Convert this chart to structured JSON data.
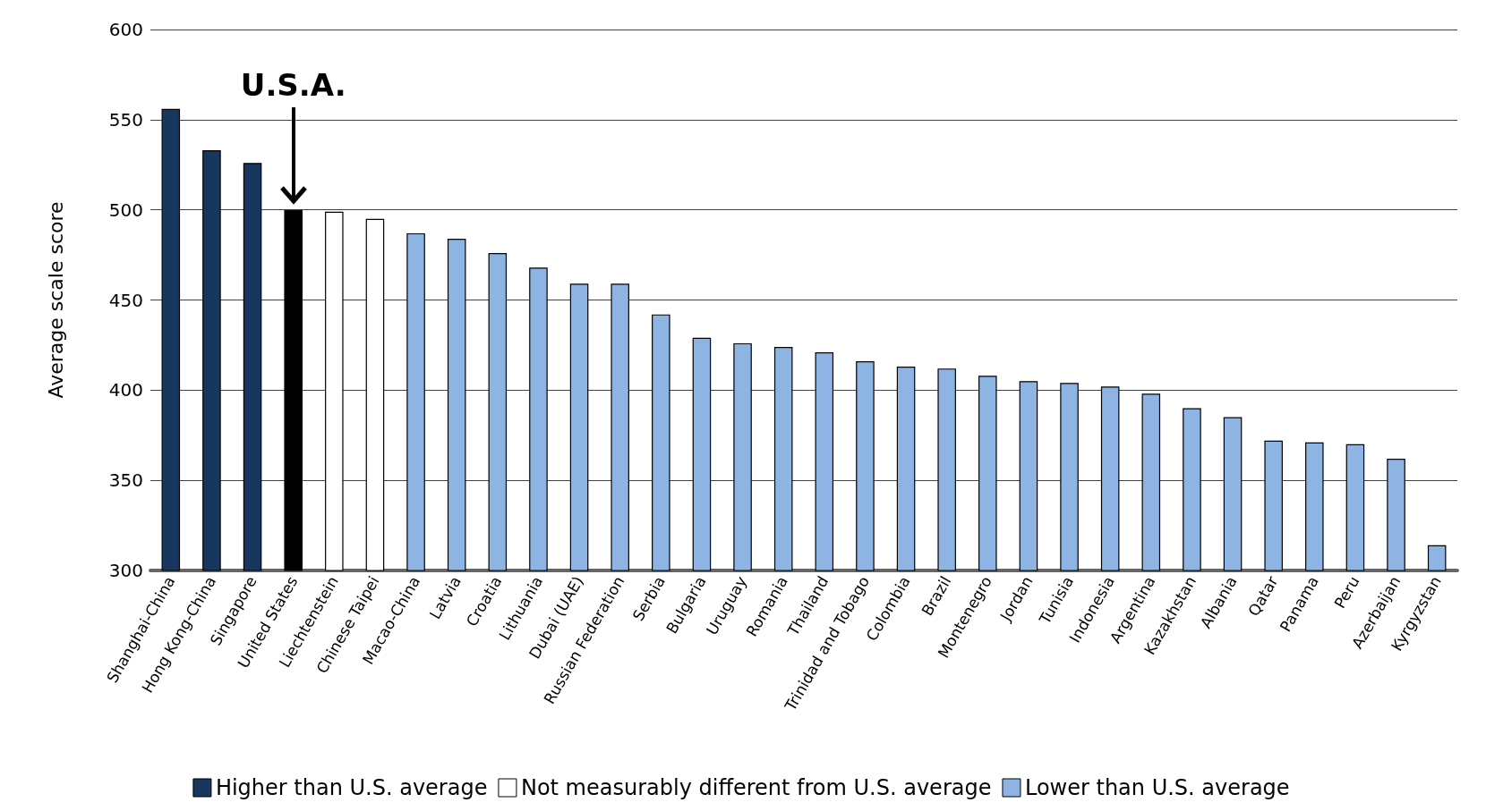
{
  "chart_data": {
    "type": "bar",
    "ylabel": "Average scale score",
    "stacked": true,
    "categories": [
      "Shanghai-China",
      "Hong Kong-China",
      "Singapore",
      "United States",
      "Liechtenstein",
      "Chinese Taipei",
      "Macao-China",
      "Latvia",
      "Croatia",
      "Lithuania",
      "Dubai (UAE)",
      "Russian Federation",
      "Serbia",
      "Bulgaria",
      "Uruguay",
      "Romania",
      "Thailand",
      "Trinidad and Tobago",
      "Colombia",
      "Brazil",
      "Montenegro",
      "Jordan",
      "Tunisia",
      "Indonesia",
      "Argentina",
      "Kazakhstan",
      "Albania",
      "Qatar",
      "Panama",
      "Peru",
      "Azerbaijan",
      "Kyrgyzstan"
    ],
    "series": [
      {
        "name": "Higher than U.S. average",
        "color": "#17375e",
        "values": [
          556,
          533,
          526,
          null,
          null,
          null,
          null,
          null,
          null,
          null,
          null,
          null,
          null,
          null,
          null,
          null,
          null,
          null,
          null,
          null,
          null,
          null,
          null,
          null,
          null,
          null,
          null,
          null,
          null,
          null,
          null,
          null
        ]
      },
      {
        "color": "#000000",
        "values": [
          null,
          null,
          null,
          500,
          null,
          null,
          null,
          null,
          null,
          null,
          null,
          null,
          null,
          null,
          null,
          null,
          null,
          null,
          null,
          null,
          null,
          null,
          null,
          null,
          null,
          null,
          null,
          null,
          null,
          null,
          null,
          null
        ]
      },
      {
        "name": "Not measurably different from U.S. average",
        "color": "#ffffff",
        "values": [
          null,
          null,
          null,
          null,
          499,
          495,
          null,
          null,
          null,
          null,
          null,
          null,
          null,
          null,
          null,
          null,
          null,
          null,
          null,
          null,
          null,
          null,
          null,
          null,
          null,
          null,
          null,
          null,
          null,
          null,
          null,
          null
        ]
      },
      {
        "name": "Lower than U.S. average",
        "color": "#8eb4e3",
        "values": [
          null,
          null,
          null,
          null,
          null,
          null,
          487,
          484,
          476,
          468,
          459,
          459,
          442,
          429,
          426,
          424,
          421,
          416,
          413,
          412,
          408,
          405,
          404,
          402,
          398,
          390,
          385,
          372,
          371,
          370,
          362,
          314
        ]
      }
    ],
    "ylim": [
      300,
      600
    ],
    "yticks": [
      300,
      350,
      400,
      450,
      500,
      550,
      600
    ],
    "grid": "y",
    "legend": "bottom",
    "annotations": [
      "U.S.A."
    ]
  }
}
